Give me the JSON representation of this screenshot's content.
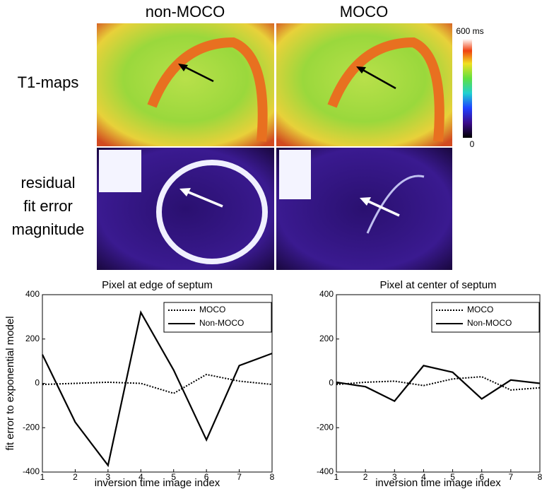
{
  "figure": {
    "column_labels": [
      "non-MOCO",
      "MOCO"
    ],
    "row_labels": [
      [
        "T1-maps"
      ],
      [
        "residual",
        "fit error",
        "magnitude"
      ]
    ],
    "colorbar_labels": [
      "600 ms",
      "0"
    ]
  },
  "chart_data": [
    {
      "type": "line",
      "title": "Pixel at edge of septum",
      "xlabel": "inversion time image index",
      "ylabel": "fit error to exponential model",
      "x": [
        1,
        2,
        3,
        4,
        5,
        6,
        7,
        8
      ],
      "series": [
        {
          "name": "MOCO",
          "color": "#000000",
          "style": "dotted",
          "values": [
            -5,
            0,
            5,
            0,
            -45,
            40,
            10,
            -5
          ]
        },
        {
          "name": "Non-MOCO",
          "color": "#000000",
          "style": "solid",
          "values": [
            130,
            -175,
            -370,
            320,
            60,
            -255,
            80,
            135
          ]
        }
      ],
      "xlim": [
        1,
        8
      ],
      "xticks": [
        1,
        2,
        3,
        4,
        5,
        6,
        7,
        8
      ],
      "ylim": [
        -400,
        400
      ],
      "yticks": [
        -400,
        -200,
        0,
        200,
        400
      ],
      "legend": "upper right"
    },
    {
      "type": "line",
      "title": "Pixel at center of septum",
      "xlabel": "inversion time image index",
      "x": [
        1,
        2,
        3,
        4,
        5,
        6,
        7,
        8
      ],
      "series": [
        {
          "name": "MOCO",
          "color": "#000000",
          "style": "dotted",
          "values": [
            -5,
            5,
            10,
            -10,
            20,
            30,
            -30,
            -20
          ]
        },
        {
          "name": "Non-MOCO",
          "color": "#000000",
          "style": "solid",
          "values": [
            5,
            -15,
            -80,
            80,
            50,
            -70,
            15,
            0
          ]
        }
      ],
      "xlim": [
        1,
        8
      ],
      "xticks": [
        1,
        2,
        3,
        4,
        5,
        6,
        7,
        8
      ],
      "ylim": [
        -400,
        400
      ],
      "yticks": [
        -400,
        -200,
        0,
        200,
        400
      ],
      "legend": "upper right"
    }
  ]
}
